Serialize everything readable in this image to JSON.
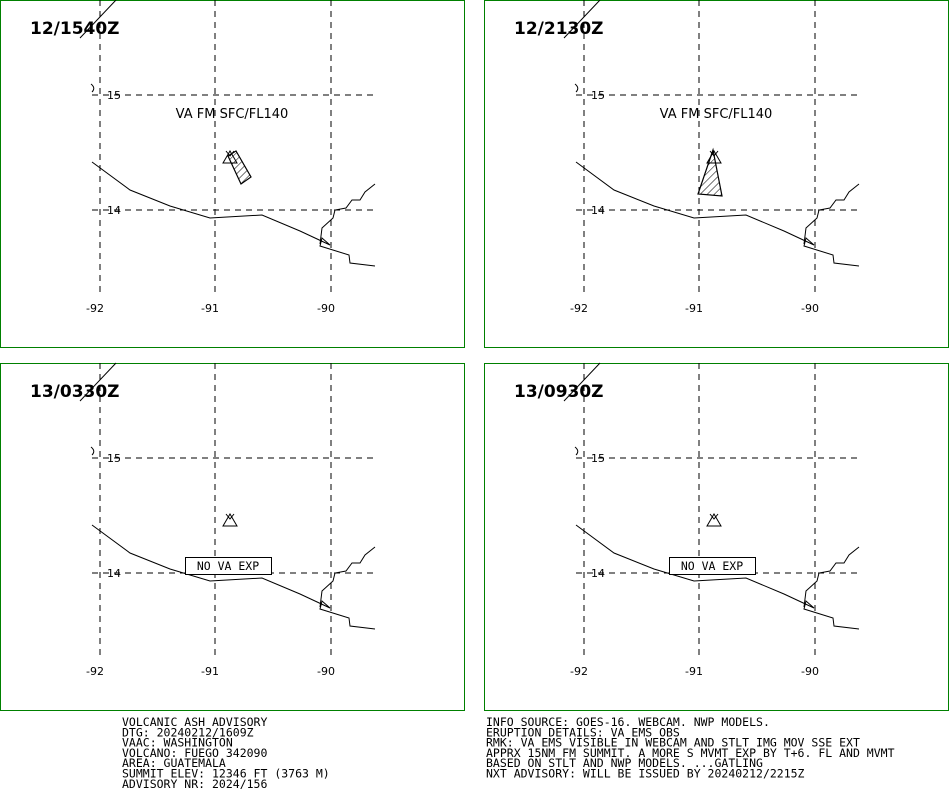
{
  "panels": [
    {
      "time": "12/1540Z",
      "label": "VA FM SFC/FL140"
    },
    {
      "time": "12/2130Z",
      "label": "VA FM SFC/FL140"
    },
    {
      "time": "13/0330Z",
      "label": "NO VA EXP"
    },
    {
      "time": "13/0930Z",
      "label": "NO VA EXP"
    }
  ],
  "grid_labels": {
    "lat": [
      "15",
      "14"
    ],
    "lon": [
      "-92",
      "-91",
      "-90"
    ]
  },
  "advisory_left": [
    "VOLCANIC ASH ADVISORY",
    "DTG: 20240212/1609Z",
    "VAAC: WASHINGTON",
    "VOLCANO: FUEGO 342090",
    "AREA: GUATEMALA",
    "SUMMIT ELEV: 12346 FT (3763 M)",
    "ADVISORY NR: 2024/156"
  ],
  "advisory_right": [
    "INFO SOURCE: GOES-16. WEBCAM. NWP MODELS.",
    "ERUPTION DETAILS: VA EMS OBS",
    "RMK: VA EMS VISIBLE IN WEBCAM AND STLT IMG MOV SSE EXT",
    "APPRX 15NM FM SUMMIT. A MORE S MVMT EXP BY T+6. FL AND MVMT",
    "BASED ON STLT AND NWP MODELS. ...GATLING",
    "NXT ADVISORY: WILL BE ISSUED BY 20240212/2215Z"
  ]
}
